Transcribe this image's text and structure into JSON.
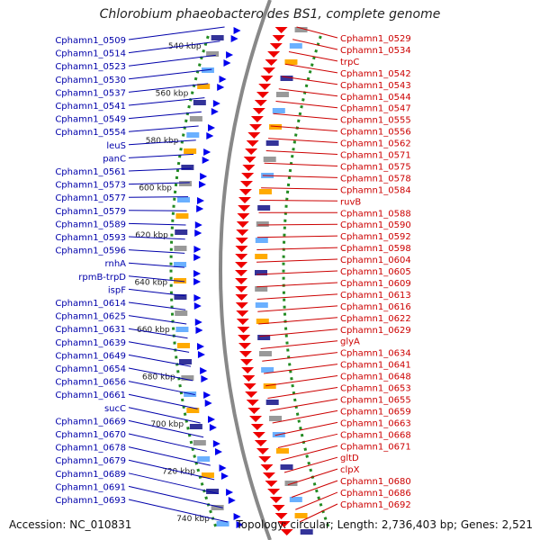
{
  "title": "Chlorobium phaeobacteroides BS1, complete genome",
  "footer": {
    "accession": "Accession: NC_010831",
    "summary": "Topology: circular; Length: 2,736,403 bp; Genes: 2,521"
  },
  "scale_ticks": [
    "540 kbp",
    "560 kbp",
    "580 kbp",
    "600 kbp",
    "620 kbp",
    "640 kbp",
    "660 kbp",
    "680 kbp",
    "700 kbp",
    "720 kbp",
    "740 kbp"
  ],
  "left_labels": [
    "Cphamn1_0509",
    "Cphamn1_0514",
    "Cphamn1_0523",
    "Cphamn1_0530",
    "Cphamn1_0537",
    "Cphamn1_0541",
    "Cphamn1_0549",
    "Cphamn1_0554",
    "leuS",
    "panC",
    "Cphamn1_0561",
    "Cphamn1_0573",
    "Cphamn1_0577",
    "Cphamn1_0579",
    "Cphamn1_0589",
    "Cphamn1_0593",
    "Cphamn1_0596",
    "rnhA",
    "rpmB-trpD",
    "ispF",
    "Cphamn1_0614",
    "Cphamn1_0625",
    "Cphamn1_0631",
    "Cphamn1_0639",
    "Cphamn1_0649",
    "Cphamn1_0654",
    "Cphamn1_0656",
    "Cphamn1_0661",
    "sucC",
    "Cphamn1_0669",
    "Cphamn1_0670",
    "Cphamn1_0678",
    "Cphamn1_0679",
    "Cphamn1_0689",
    "Cphamn1_0691",
    "Cphamn1_0693"
  ],
  "right_labels": [
    "Cphamn1_0529",
    "Cphamn1_0534",
    "trpC",
    "Cphamn1_0542",
    "Cphamn1_0543",
    "Cphamn1_0544",
    "Cphamn1_0547",
    "Cphamn1_0555",
    "Cphamn1_0556",
    "Cphamn1_0562",
    "Cphamn1_0571",
    "Cphamn1_0575",
    "Cphamn1_0578",
    "Cphamn1_0584",
    "ruvB",
    "Cphamn1_0588",
    "Cphamn1_0590",
    "Cphamn1_0592",
    "Cphamn1_0598",
    "Cphamn1_0604",
    "Cphamn1_0605",
    "Cphamn1_0609",
    "Cphamn1_0613",
    "Cphamn1_0616",
    "Cphamn1_0622",
    "Cphamn1_0629",
    "glyA",
    "Cphamn1_0634",
    "Cphamn1_0641",
    "Cphamn1_0648",
    "Cphamn1_0653",
    "Cphamn1_0655",
    "Cphamn1_0659",
    "Cphamn1_0663",
    "Cphamn1_0668",
    "Cphamn1_0671",
    "gltD",
    "clpX",
    "Cphamn1_0680",
    "Cphamn1_0686",
    "Cphamn1_0692"
  ],
  "colors": {
    "forward": "#0000ee",
    "reverse": "#ee0000",
    "backbone": "#888888",
    "tick_dots": "#228b22",
    "left_text": "#0000aa",
    "right_text": "#cc0000"
  }
}
